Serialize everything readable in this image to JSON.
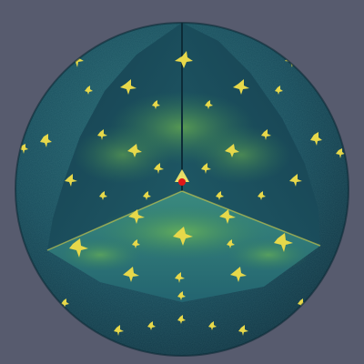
{
  "scene": {
    "subject": "diffraction-sphere-cutaway",
    "colors": {
      "background": "#575b6e",
      "sphere_dark": "#123c4c",
      "sphere_mid": "#1f5a66",
      "inner_wall_left": "#1a4a5a",
      "inner_wall_right": "#1b4d5c",
      "floor": "#2a6f78",
      "diffuse_glow": "#5fbf5a",
      "bragg_spot": "#e7d84a",
      "bragg_spot_bright": "#fff06a",
      "center_marker": "#e01818"
    }
  }
}
